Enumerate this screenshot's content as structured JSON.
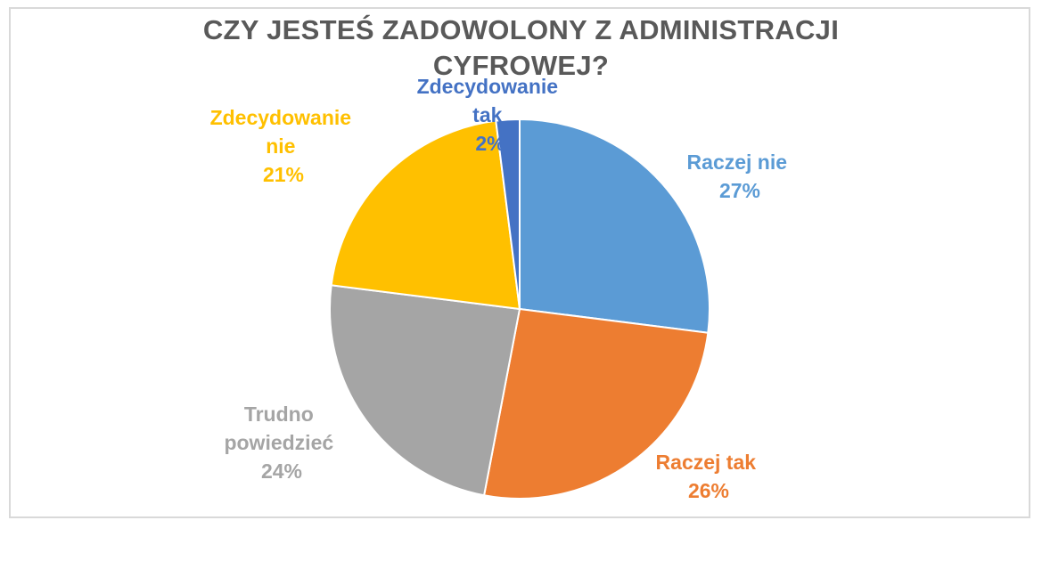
{
  "chart_data": {
    "type": "pie",
    "title_lines": [
      "CZY JESTEŚ ZADOWOLONY Z ADMINISTRACJI",
      "CYFROWEJ?"
    ],
    "slices": [
      {
        "name_lines": [
          "Raczej nie"
        ],
        "value": 27,
        "percent_label": "27%",
        "color": "#5b9bd5"
      },
      {
        "name_lines": [
          "Raczej tak"
        ],
        "value": 26,
        "percent_label": "26%",
        "color": "#ed7d31"
      },
      {
        "name_lines": [
          "Trudno",
          "powiedzieć"
        ],
        "value": 24,
        "percent_label": "24%",
        "color": "#a5a5a5"
      },
      {
        "name_lines": [
          "Zdecydowanie",
          "nie"
        ],
        "value": 21,
        "percent_label": "21%",
        "color": "#ffc000"
      },
      {
        "name_lines": [
          "Zdecydowanie",
          "tak"
        ],
        "value": 2,
        "percent_label": "2%",
        "color": "#4472c4"
      }
    ]
  }
}
